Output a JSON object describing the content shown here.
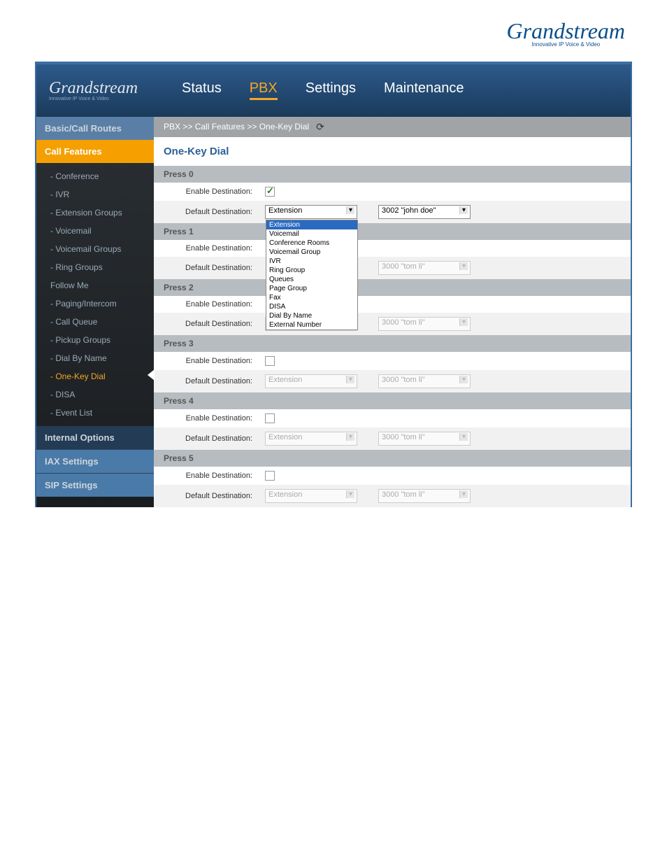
{
  "brand": {
    "name": "Grandstream",
    "tagline": "Innovative IP Voice & Video"
  },
  "nav": {
    "status": "Status",
    "pbx": "PBX",
    "settings": "Settings",
    "maintenance": "Maintenance",
    "active": "pbx"
  },
  "sidebar": {
    "sections": {
      "basic": "Basic/Call Routes",
      "call_features": "Call Features",
      "internal": "Internal Options",
      "iax": "IAX Settings",
      "sip": "SIP Settings"
    },
    "call_feature_items": [
      "-  Conference",
      "-  IVR",
      "-  Extension Groups",
      "-  Voicemail",
      "-  Voicemail Groups",
      "-  Ring Groups",
      "   Follow Me",
      "-  Paging/Intercom",
      "-  Call Queue",
      "-  Pickup Groups",
      "-  Dial By Name",
      "-  One-Key Dial",
      "-  DISA",
      "-  Event List"
    ],
    "active_item_index": 11
  },
  "breadcrumb": "PBX >> Call Features >> One-Key Dial",
  "page_title": "One-Key Dial",
  "labels": {
    "enable": "Enable Destination:",
    "default": "Default Destination:"
  },
  "dropdown_options": [
    "Extension",
    "Voicemail",
    "Conference Rooms",
    "Voicemail Group",
    "IVR",
    "Ring Group",
    "Queues",
    "Page Group",
    "Fax",
    "DISA",
    "Dial By Name",
    "External Number"
  ],
  "presses": [
    {
      "title": "Press 0",
      "enabled": true,
      "dest_type": "Extension",
      "dest_val": "3002 \"john doe\"",
      "open": true
    },
    {
      "title": "Press 1",
      "enabled": false,
      "dest_type": "Extension",
      "dest_val": "3000 \"tom li\"",
      "open": false,
      "hide_enable_cb": true,
      "hide_dest_type": true
    },
    {
      "title": "Press 2",
      "enabled": false,
      "dest_type": "Extension",
      "dest_val": "3000 \"tom li\"",
      "open": false,
      "hide_enable_cb": true
    },
    {
      "title": "Press 3",
      "enabled": false,
      "dest_type": "Extension",
      "dest_val": "3000 \"tom li\"",
      "open": false
    },
    {
      "title": "Press 4",
      "enabled": false,
      "dest_type": "Extension",
      "dest_val": "3000 \"tom li\"",
      "open": false
    },
    {
      "title": "Press 5",
      "enabled": false,
      "dest_type": "Extension",
      "dest_val": "3000 \"tom li\"",
      "open": false
    }
  ]
}
